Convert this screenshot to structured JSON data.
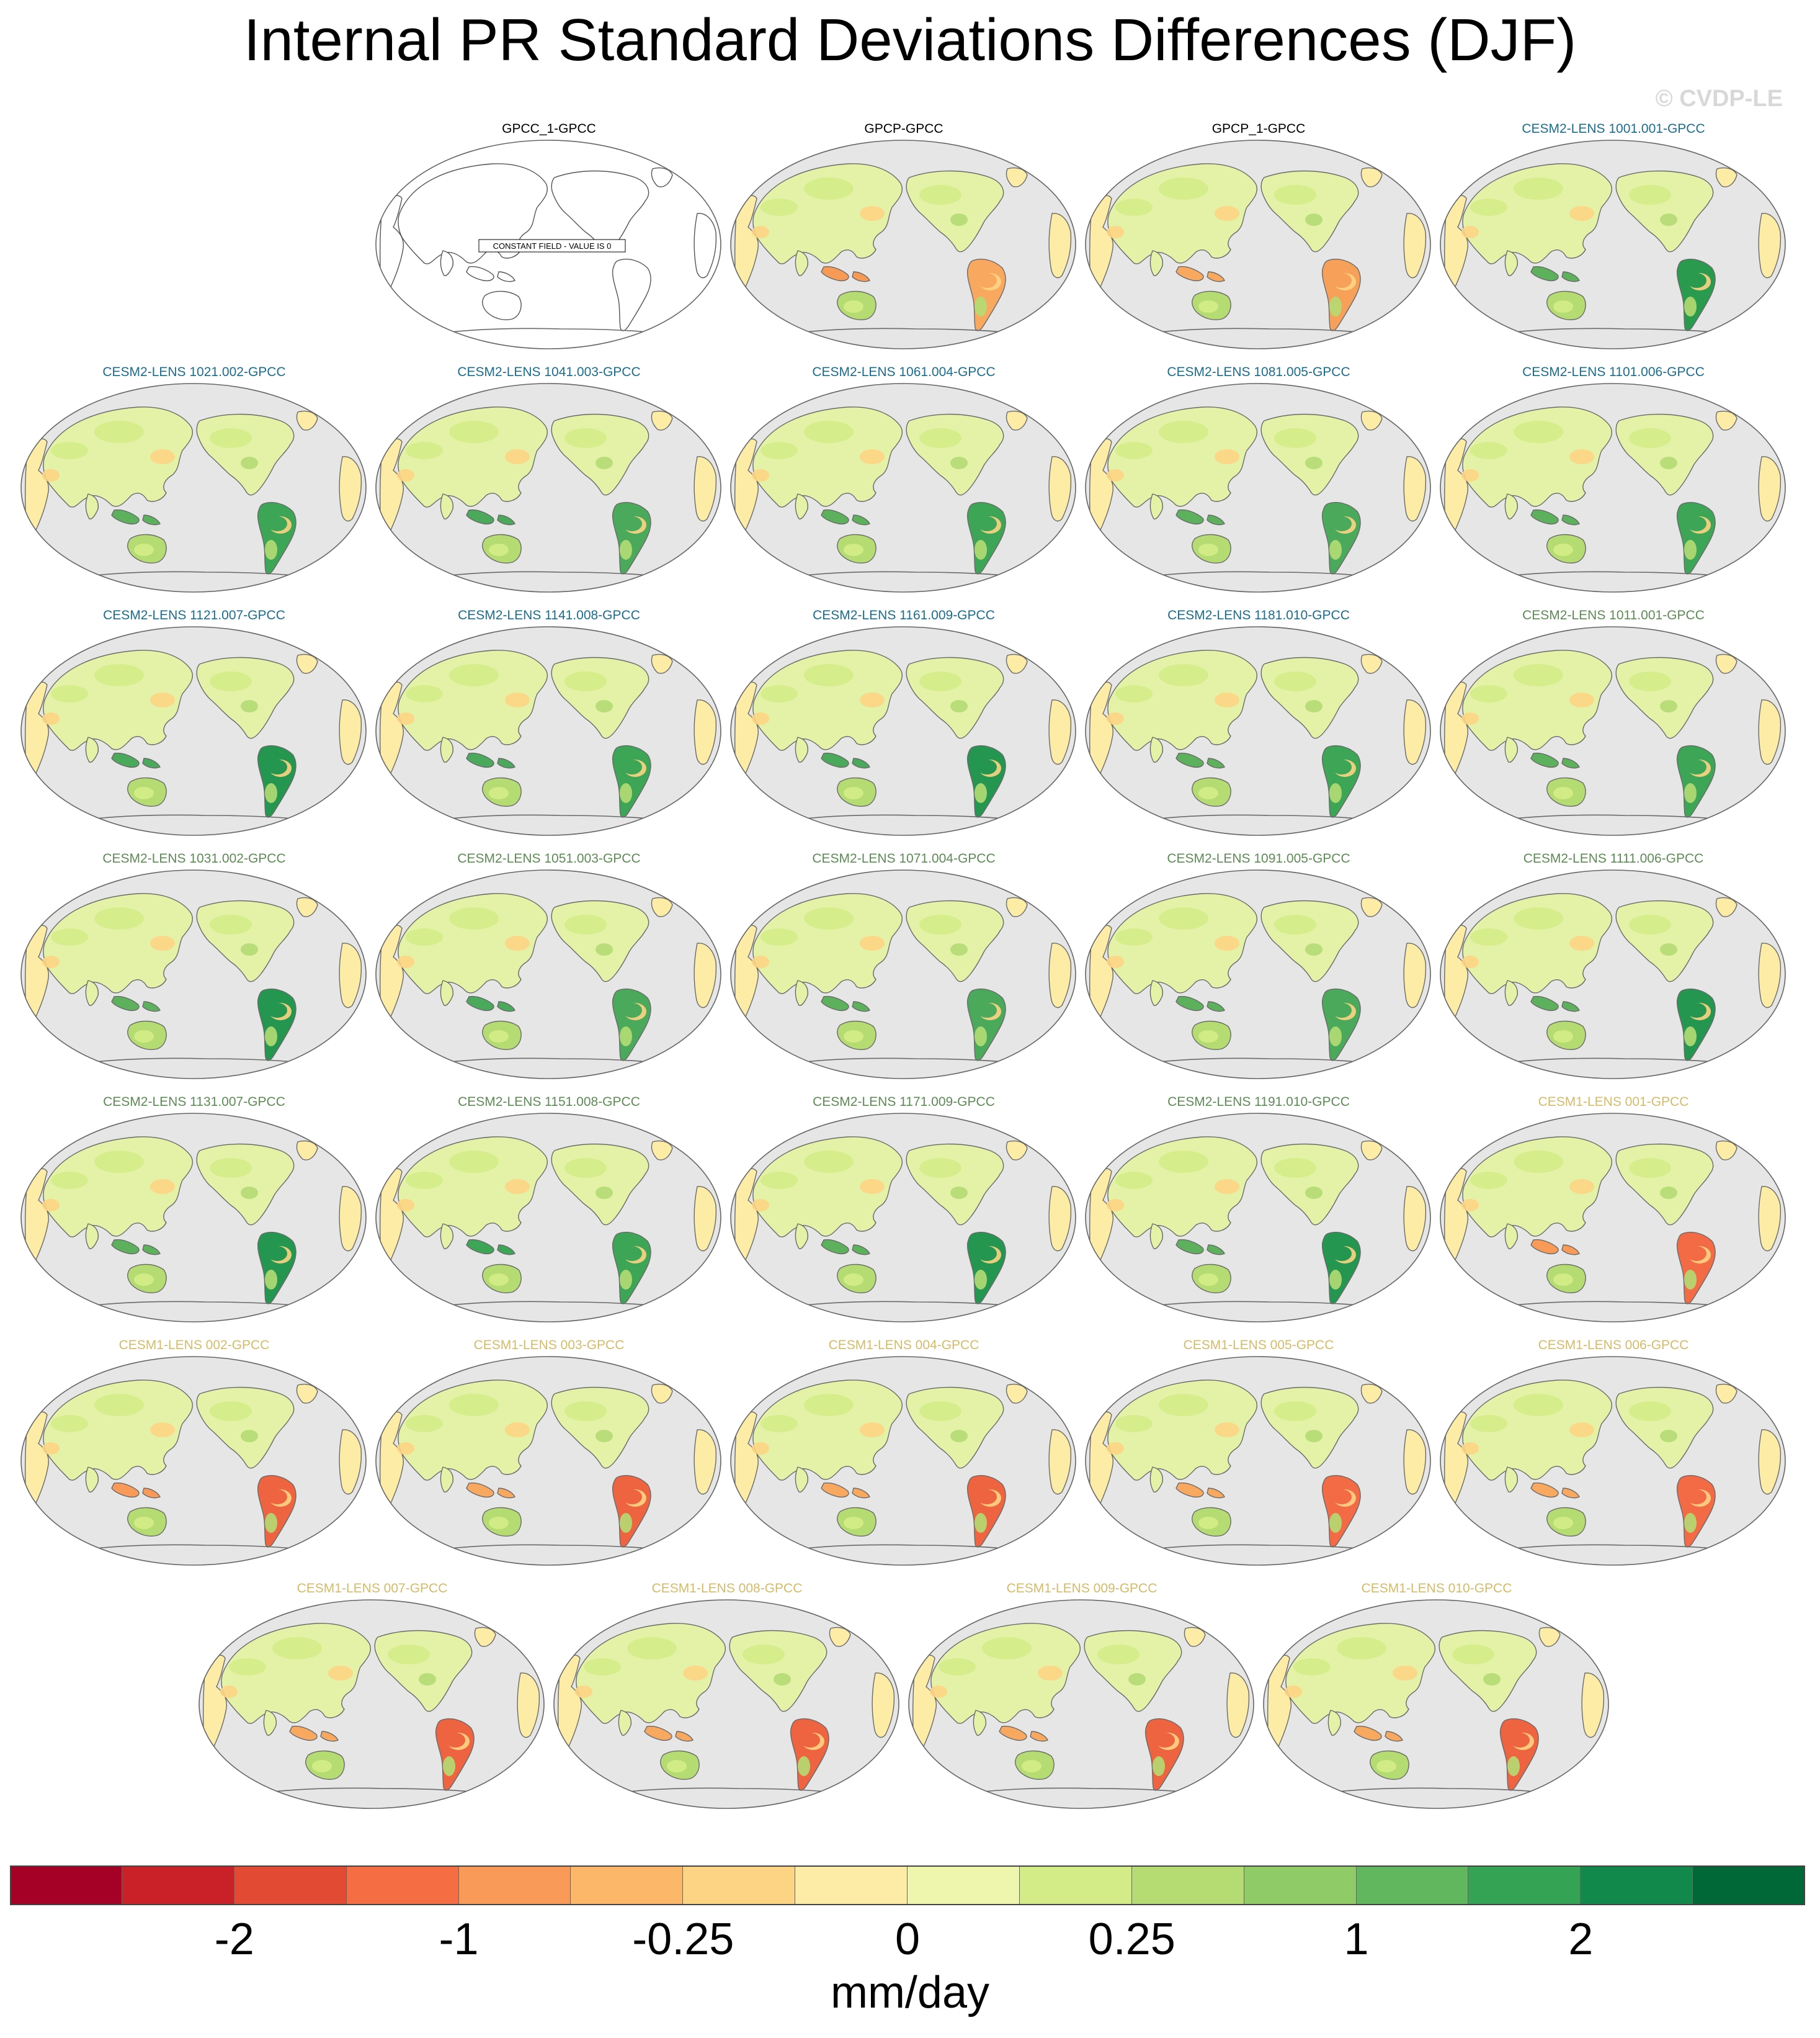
{
  "title": "Internal PR Standard Deviations Differences (DJF)",
  "credit": "© CVDP-LE",
  "constant_field_note": "CONSTANT FIELD - VALUE IS 0",
  "units": "mm/day",
  "colorbar": {
    "colors": [
      "#a50026",
      "#c92127",
      "#e34a33",
      "#f46d43",
      "#f99a58",
      "#fdb769",
      "#fdd484",
      "#fdeca6",
      "#eef6ae",
      "#d4ec87",
      "#b4dc73",
      "#8fcb66",
      "#60b75e",
      "#34a353",
      "#11894b",
      "#006837"
    ],
    "ticks": [
      "-2",
      "-1",
      "-0.25",
      "0",
      "0.25",
      "1",
      "2"
    ]
  },
  "legend_colors": {
    "observations": "#000000",
    "cesm2_lens_macro": "#1a6d8c",
    "cesm2_lens_micro": "#5d8a55",
    "cesm1_lens": "#d4bb68"
  },
  "panels": [
    {
      "title": "GPCC_1-GPCC",
      "group": "observations",
      "constant": true
    },
    {
      "title": "GPCP-GPCC",
      "group": "observations",
      "samerica_color": "#f9a860",
      "maritime_color": "#f79a55"
    },
    {
      "title": "GPCP_1-GPCC",
      "group": "observations",
      "samerica_color": "#f7a05a",
      "maritime_color": "#f9a860"
    },
    {
      "title": "CESM2-LENS 1001.001-GPCC",
      "group": "cesm2_lens_macro",
      "samerica_color": "#2a9a4e",
      "maritime_color": "#5db15d"
    },
    {
      "title": "CESM2-LENS 1021.002-GPCC",
      "group": "cesm2_lens_macro",
      "samerica_color": "#3ca656",
      "maritime_color": "#5db15d"
    },
    {
      "title": "CESM2-LENS 1041.003-GPCC",
      "group": "cesm2_lens_macro",
      "samerica_color": "#4aa95a",
      "maritime_color": "#4aa95a"
    },
    {
      "title": "CESM2-LENS 1061.004-GPCC",
      "group": "cesm2_lens_macro",
      "samerica_color": "#3ca656",
      "maritime_color": "#5db15d"
    },
    {
      "title": "CESM2-LENS 1081.005-GPCC",
      "group": "cesm2_lens_macro",
      "samerica_color": "#4aa95a",
      "maritime_color": "#5db15d"
    },
    {
      "title": "CESM2-LENS 1101.006-GPCC",
      "group": "cesm2_lens_macro",
      "samerica_color": "#3ca656",
      "maritime_color": "#5db15d"
    },
    {
      "title": "CESM2-LENS 1121.007-GPCC",
      "group": "cesm2_lens_macro",
      "samerica_color": "#249650",
      "maritime_color": "#4aa95a"
    },
    {
      "title": "CESM2-LENS 1141.008-GPCC",
      "group": "cesm2_lens_macro",
      "samerica_color": "#3ca656",
      "maritime_color": "#4aa95a"
    },
    {
      "title": "CESM2-LENS 1161.009-GPCC",
      "group": "cesm2_lens_macro",
      "samerica_color": "#249650",
      "maritime_color": "#4aa95a"
    },
    {
      "title": "CESM2-LENS 1181.010-GPCC",
      "group": "cesm2_lens_macro",
      "samerica_color": "#3ca656",
      "maritime_color": "#5db15d"
    },
    {
      "title": "CESM2-LENS 1011.001-GPCC",
      "group": "cesm2_lens_micro",
      "samerica_color": "#3ca656",
      "maritime_color": "#5db15d"
    },
    {
      "title": "CESM2-LENS 1031.002-GPCC",
      "group": "cesm2_lens_micro",
      "samerica_color": "#249650",
      "maritime_color": "#5db15d"
    },
    {
      "title": "CESM2-LENS 1051.003-GPCC",
      "group": "cesm2_lens_micro",
      "samerica_color": "#4aa95a",
      "maritime_color": "#4aa95a"
    },
    {
      "title": "CESM2-LENS 1071.004-GPCC",
      "group": "cesm2_lens_micro",
      "samerica_color": "#4aa95a",
      "maritime_color": "#5db15d"
    },
    {
      "title": "CESM2-LENS 1091.005-GPCC",
      "group": "cesm2_lens_micro",
      "samerica_color": "#4aa95a",
      "maritime_color": "#5db15d"
    },
    {
      "title": "CESM2-LENS 1111.006-GPCC",
      "group": "cesm2_lens_micro",
      "samerica_color": "#249650",
      "maritime_color": "#5db15d"
    },
    {
      "title": "CESM2-LENS 1131.007-GPCC",
      "group": "cesm2_lens_micro",
      "samerica_color": "#249650",
      "maritime_color": "#5db15d"
    },
    {
      "title": "CESM2-LENS 1151.008-GPCC",
      "group": "cesm2_lens_micro",
      "samerica_color": "#3ca656",
      "maritime_color": "#3ca656"
    },
    {
      "title": "CESM2-LENS 1171.009-GPCC",
      "group": "cesm2_lens_micro",
      "samerica_color": "#249650",
      "maritime_color": "#5db15d"
    },
    {
      "title": "CESM2-LENS 1191.010-GPCC",
      "group": "cesm2_lens_micro",
      "samerica_color": "#249650",
      "maritime_color": "#5db15d"
    },
    {
      "title": "CESM1-LENS 001-GPCC",
      "group": "cesm1_lens",
      "samerica_color": "#f36b45",
      "maritime_color": "#f99a58"
    },
    {
      "title": "CESM1-LENS 002-GPCC",
      "group": "cesm1_lens",
      "samerica_color": "#ee6440",
      "maritime_color": "#f99a58"
    },
    {
      "title": "CESM1-LENS 003-GPCC",
      "group": "cesm1_lens",
      "samerica_color": "#ee6440",
      "maritime_color": "#f9a860"
    },
    {
      "title": "CESM1-LENS 004-GPCC",
      "group": "cesm1_lens",
      "samerica_color": "#ee6440",
      "maritime_color": "#f9a860"
    },
    {
      "title": "CESM1-LENS 005-GPCC",
      "group": "cesm1_lens",
      "samerica_color": "#f36b45",
      "maritime_color": "#f9a860"
    },
    {
      "title": "CESM1-LENS 006-GPCC",
      "group": "cesm1_lens",
      "samerica_color": "#f36b45",
      "maritime_color": "#f9a860"
    },
    {
      "title": "CESM1-LENS 007-GPCC",
      "group": "cesm1_lens",
      "samerica_color": "#ee6440",
      "maritime_color": "#f9a860"
    },
    {
      "title": "CESM1-LENS 008-GPCC",
      "group": "cesm1_lens",
      "samerica_color": "#ee6440",
      "maritime_color": "#f9a860"
    },
    {
      "title": "CESM1-LENS 009-GPCC",
      "group": "cesm1_lens",
      "samerica_color": "#ee6440",
      "maritime_color": "#f9a860"
    },
    {
      "title": "CESM1-LENS 010-GPCC",
      "group": "cesm1_lens",
      "samerica_color": "#ee6440",
      "maritime_color": "#f9a860"
    }
  ]
}
